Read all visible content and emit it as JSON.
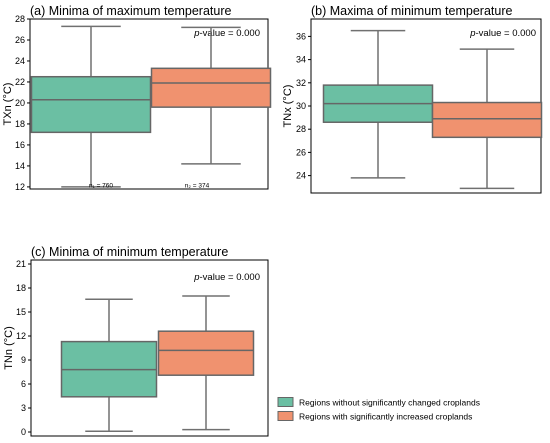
{
  "colors": {
    "without": "#6bbfa3",
    "with": "#f0926f",
    "box_edge": "#666666",
    "whisker": "#707070",
    "axis": "#000000"
  },
  "legend": {
    "items": [
      {
        "label": "Regions without significantly changed croplands",
        "color_key": "without"
      },
      {
        "label": "Regions with significantly increased croplands",
        "color_key": "with"
      }
    ],
    "placement": "bottom-right"
  },
  "chart_data": [
    {
      "type": "box",
      "title": "(a) Minima of maximum temperature",
      "ylabel": "TXn (°C)",
      "ylim": [
        11.8,
        28
      ],
      "yticks": [
        12,
        14,
        16,
        18,
        20,
        22,
        24,
        26,
        28
      ],
      "annotation": {
        "prefix": "p",
        "text": "-value = 0.000"
      },
      "sample_sizes": [
        "n₁ = 760",
        "n₂ = 374"
      ],
      "series": [
        {
          "color_key": "without",
          "whisker_low": 12.0,
          "q1": 17.2,
          "median": 20.3,
          "q3": 22.5,
          "whisker_high": 27.3
        },
        {
          "color_key": "with",
          "whisker_low": 14.2,
          "q1": 19.6,
          "median": 21.9,
          "q3": 23.3,
          "whisker_high": 27.2
        }
      ]
    },
    {
      "type": "box",
      "title": "(b) Maxima of minimum temperature",
      "ylabel": "TNx (°C)",
      "ylim": [
        22.5,
        37.5
      ],
      "yticks": [
        24,
        26,
        28,
        30,
        32,
        34,
        36
      ],
      "annotation": {
        "prefix": "p",
        "text": "-value = 0.000"
      },
      "sample_sizes": [],
      "series": [
        {
          "color_key": "without",
          "whisker_low": 23.8,
          "q1": 28.6,
          "median": 30.2,
          "q3": 31.8,
          "whisker_high": 36.5
        },
        {
          "color_key": "with",
          "whisker_low": 22.9,
          "q1": 27.3,
          "median": 28.9,
          "q3": 30.3,
          "whisker_high": 34.9
        }
      ]
    },
    {
      "type": "box",
      "title": "(c) Minima of minimum temperature",
      "ylabel": "TNn (°C)",
      "ylim": [
        -0.5,
        21.5
      ],
      "yticks": [
        0,
        3,
        6,
        9,
        12,
        15,
        18,
        21
      ],
      "annotation": {
        "prefix": "p",
        "text": "-value = 0.000"
      },
      "sample_sizes": [],
      "series": [
        {
          "color_key": "without",
          "whisker_low": 0.1,
          "q1": 4.4,
          "median": 7.8,
          "q3": 11.3,
          "whisker_high": 16.6
        },
        {
          "color_key": "with",
          "whisker_low": 0.3,
          "q1": 7.1,
          "median": 10.2,
          "q3": 12.6,
          "whisker_high": 17.0
        }
      ]
    }
  ]
}
